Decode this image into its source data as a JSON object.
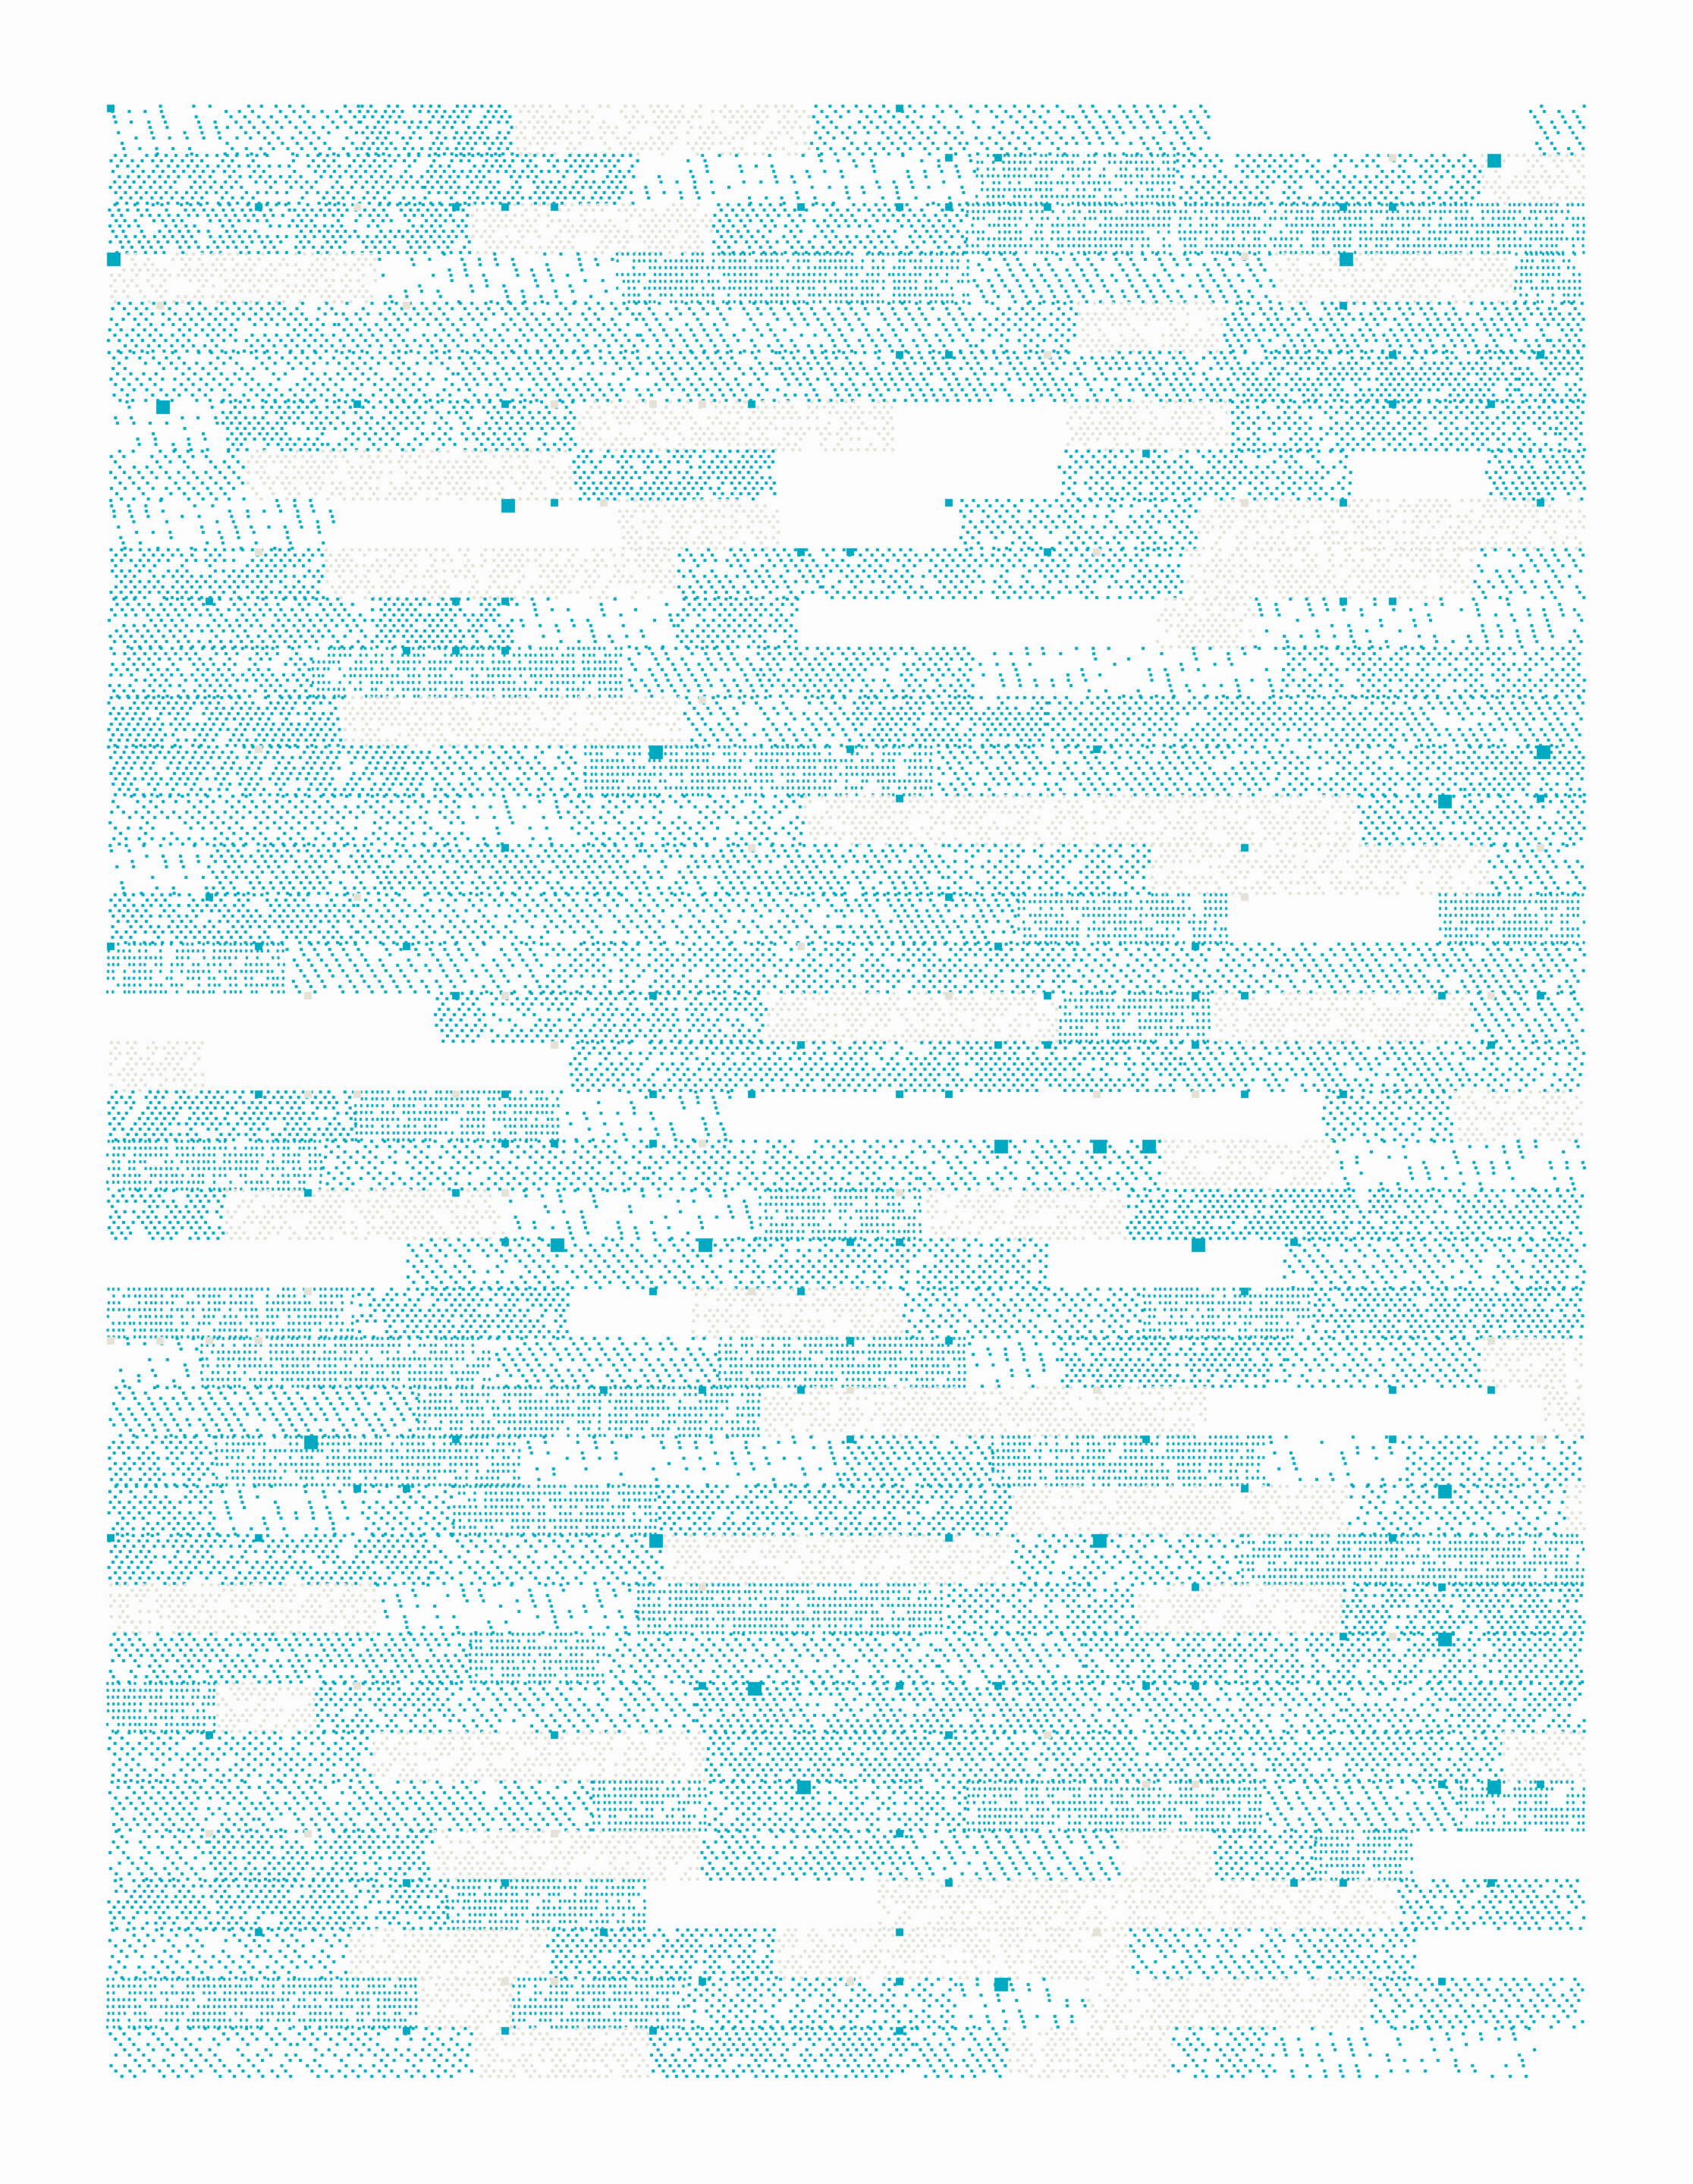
{
  "artwork": {
    "style": "generative dot-hatch pattern",
    "colors": {
      "background": "#fcfcfc",
      "primary_dots": "#00a9c2",
      "secondary_dots": "#e4e2d6"
    },
    "motifs": [
      "diagonal-dot-hatch",
      "dense-dot-grid",
      "square-markers",
      "blank-bands"
    ]
  }
}
